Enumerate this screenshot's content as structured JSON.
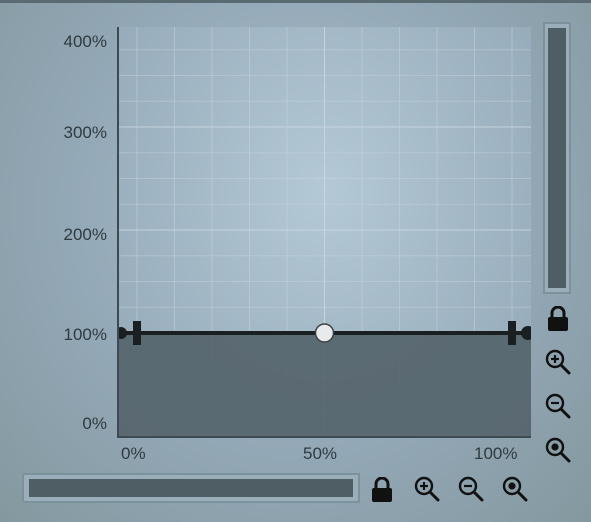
{
  "graph": {
    "y_axis_labels": [
      "400%",
      "300%",
      "200%",
      "100%",
      "0%"
    ],
    "x_axis_labels": [
      "0%",
      "50%",
      "100%"
    ],
    "curve_level_percent": 100,
    "handle_position_percent": 50
  },
  "colors": {
    "curve": "#1a1f22",
    "fill": "#55646b",
    "grid": "#c9d7e0"
  },
  "vertical_controls": {
    "lock_icon": "lock-icon",
    "zoom_in_icon": "zoom-in-icon",
    "zoom_out_icon": "zoom-out-icon",
    "zoom_fit_icon": "zoom-reset-icon"
  },
  "horizontal_controls": {
    "lock_icon": "lock-icon",
    "zoom_in_icon": "zoom-in-icon",
    "zoom_out_icon": "zoom-out-icon",
    "zoom_fit_icon": "zoom-reset-icon"
  }
}
